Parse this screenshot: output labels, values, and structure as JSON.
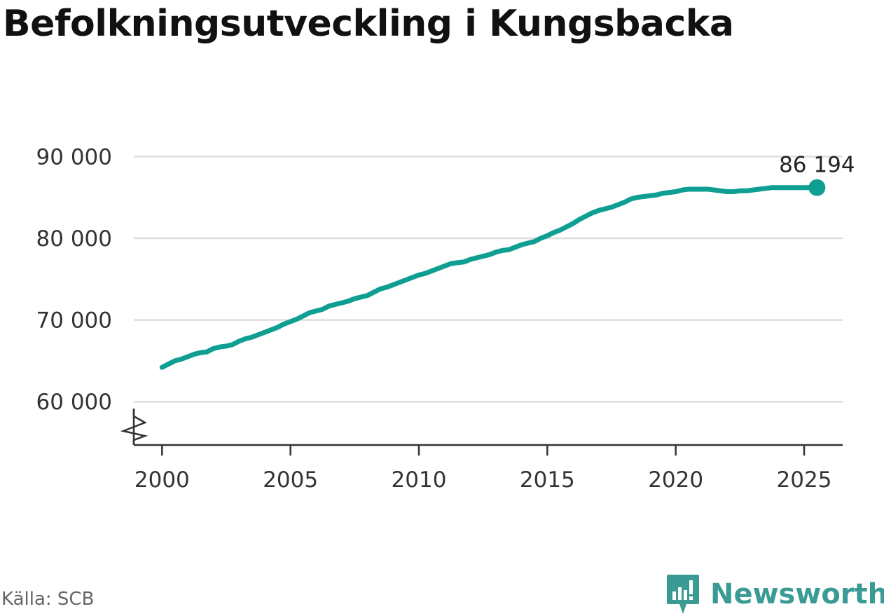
{
  "title": "Befolkningsutveckling i Kungsbacka",
  "source": "Källa: SCB",
  "brand": {
    "name": "Newsworthy",
    "color": "#3a9b94"
  },
  "colors": {
    "line": "#0f9e92",
    "grid": "#dddddd",
    "axis": "#333333"
  },
  "chart_data": {
    "type": "line",
    "title": "Befolkningsutveckling i Kungsbacka",
    "xlabel": "",
    "ylabel": "",
    "x_ticks": [
      2000,
      2005,
      2010,
      2015,
      2020,
      2025
    ],
    "x_tick_labels": [
      "2000",
      "2005",
      "2010",
      "2015",
      "2020",
      "2025"
    ],
    "y_ticks": [
      60000,
      70000,
      80000,
      90000
    ],
    "y_tick_labels": [
      "60 000",
      "70 000",
      "80 000",
      "90 000"
    ],
    "xlim": [
      1998.9,
      2026.5
    ],
    "ylim": [
      54700,
      92000
    ],
    "y_axis_break": true,
    "grid": "horizontal",
    "end_label": "86 194",
    "series": [
      {
        "x": [
          2000.0,
          2000.25,
          2000.5,
          2000.75,
          2001.0,
          2001.25,
          2001.5,
          2001.75,
          2002.0,
          2002.25,
          2002.5,
          2002.75,
          2003.0,
          2003.25,
          2003.5,
          2003.75,
          2004.0,
          2004.25,
          2004.5,
          2004.75,
          2005.0,
          2005.25,
          2005.5,
          2005.75,
          2006.0,
          2006.25,
          2006.5,
          2006.75,
          2007.0,
          2007.25,
          2007.5,
          2007.75,
          2008.0,
          2008.25,
          2008.5,
          2008.75,
          2009.0,
          2009.25,
          2009.5,
          2009.75,
          2010.0,
          2010.25,
          2010.5,
          2010.75,
          2011.0,
          2011.25,
          2011.5,
          2011.75,
          2012.0,
          2012.25,
          2012.5,
          2012.75,
          2013.0,
          2013.25,
          2013.5,
          2013.75,
          2014.0,
          2014.25,
          2014.5,
          2014.75,
          2015.0,
          2015.25,
          2015.5,
          2015.75,
          2016.0,
          2016.25,
          2016.5,
          2016.75,
          2017.0,
          2017.25,
          2017.5,
          2017.75,
          2018.0,
          2018.25,
          2018.5,
          2018.75,
          2019.0,
          2019.25,
          2019.5,
          2019.75,
          2020.0,
          2020.25,
          2020.5,
          2020.75,
          2021.0,
          2021.25,
          2021.5,
          2021.75,
          2022.0,
          2022.25,
          2022.5,
          2022.75,
          2023.0,
          2023.25,
          2023.5,
          2023.75,
          2024.0,
          2024.25,
          2024.5,
          2024.75,
          2025.0,
          2025.25,
          2025.5
        ],
        "values": [
          64200,
          64600,
          65000,
          65200,
          65500,
          65800,
          66000,
          66100,
          66500,
          66700,
          66800,
          67000,
          67400,
          67700,
          67900,
          68200,
          68500,
          68800,
          69100,
          69500,
          69800,
          70100,
          70500,
          70900,
          71100,
          71300,
          71700,
          71900,
          72100,
          72300,
          72600,
          72800,
          73000,
          73400,
          73800,
          74000,
          74300,
          74600,
          74900,
          75200,
          75500,
          75700,
          76000,
          76300,
          76600,
          76900,
          77000,
          77100,
          77400,
          77600,
          77800,
          78000,
          78300,
          78500,
          78600,
          78900,
          79200,
          79400,
          79600,
          80000,
          80300,
          80700,
          81000,
          81400,
          81800,
          82300,
          82700,
          83100,
          83400,
          83600,
          83800,
          84100,
          84400,
          84800,
          85000,
          85100,
          85200,
          85300,
          85500,
          85600,
          85700,
          85900,
          86000,
          86000,
          86000,
          86000,
          85900,
          85800,
          85700,
          85700,
          85800,
          85800,
          85900,
          86000,
          86100,
          86194,
          86194,
          86194,
          86194,
          86194,
          86194,
          86194,
          86194
        ]
      }
    ]
  }
}
